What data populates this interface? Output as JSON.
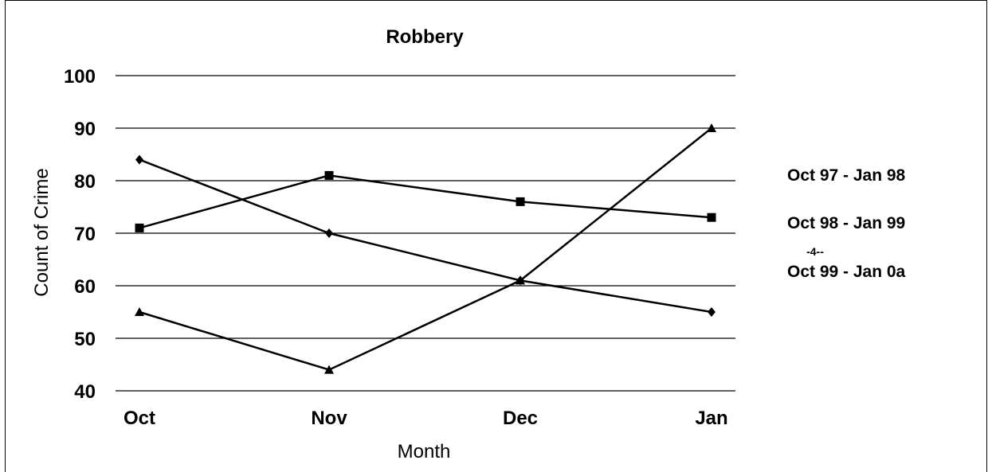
{
  "chart_data": {
    "type": "line",
    "title": "Robbery",
    "xlabel": "Month",
    "ylabel": "Count of Crime",
    "categories": [
      "Oct",
      "Nov",
      "Dec",
      "Jan"
    ],
    "ylim": [
      40,
      100
    ],
    "yticks": [
      40,
      50,
      60,
      70,
      80,
      90,
      100
    ],
    "grid": true,
    "legend_position": "right",
    "series": [
      {
        "name": "Oct 97 - Jan 98",
        "marker": "diamond",
        "values": [
          84,
          70,
          61,
          55
        ]
      },
      {
        "name": "Oct 98 - Jan 99",
        "marker": "square",
        "values": [
          71,
          81,
          76,
          73
        ]
      },
      {
        "name": "Oct 99 - Jan 0a",
        "marker": "triangle",
        "values": [
          55,
          44,
          61,
          90
        ]
      }
    ],
    "annotations": [
      "-4--"
    ]
  }
}
